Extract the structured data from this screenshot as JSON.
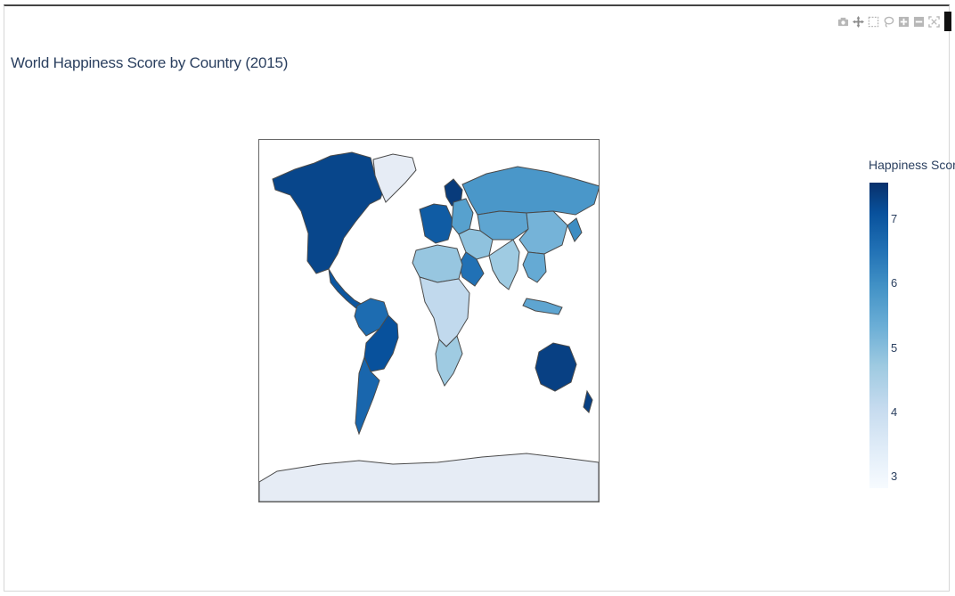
{
  "title": "World Happiness Score by Country (2015)",
  "modebar": {
    "buttons": [
      "camera-icon",
      "pan-icon",
      "box-select-icon",
      "lasso-icon",
      "zoom-in-icon",
      "zoom-out-icon",
      "reset-icon"
    ]
  },
  "colorbar": {
    "title": "Happiness Score",
    "ticks": [
      "7",
      "6",
      "5",
      "4",
      "3"
    ],
    "colorscale": [
      "#f7fbff",
      "#deebf7",
      "#c6dbef",
      "#9ecae1",
      "#6baed6",
      "#4292c6",
      "#2171b5",
      "#08519c",
      "#08306b"
    ]
  },
  "chart_data": {
    "type": "choropleth",
    "title": "World Happiness Score by Country (2015)",
    "colorbar_title": "Happiness Score",
    "range": [
      2.84,
      7.59
    ],
    "colorscale": "Blues",
    "regions": [
      {
        "name": "North America",
        "value": 7.2
      },
      {
        "name": "Greenland",
        "value": null
      },
      {
        "name": "Mexico/Central America",
        "value": 6.9
      },
      {
        "name": "South America North",
        "value": 6.5
      },
      {
        "name": "Brazil",
        "value": 7.0
      },
      {
        "name": "South America South",
        "value": 6.6
      },
      {
        "name": "Scandinavia",
        "value": 7.4
      },
      {
        "name": "Western Europe",
        "value": 6.8
      },
      {
        "name": "Eastern Europe",
        "value": 5.5
      },
      {
        "name": "Russia",
        "value": 5.7
      },
      {
        "name": "Central Asia",
        "value": 5.4
      },
      {
        "name": "China",
        "value": 5.1
      },
      {
        "name": "Middle East",
        "value": 4.8
      },
      {
        "name": "Arabian Peninsula",
        "value": 6.4
      },
      {
        "name": "South Asia",
        "value": 4.6
      },
      {
        "name": "Southeast Asia",
        "value": 5.3
      },
      {
        "name": "North Africa",
        "value": 4.7
      },
      {
        "name": "Sub-Saharan Africa",
        "value": 4.1
      },
      {
        "name": "Southern Africa",
        "value": 4.6
      },
      {
        "name": "Australia",
        "value": 7.3
      },
      {
        "name": "New Zealand",
        "value": 7.3
      },
      {
        "name": "Japan",
        "value": 5.9
      },
      {
        "name": "Indonesia",
        "value": 5.4
      },
      {
        "name": "Antarctica",
        "value": null
      }
    ]
  }
}
